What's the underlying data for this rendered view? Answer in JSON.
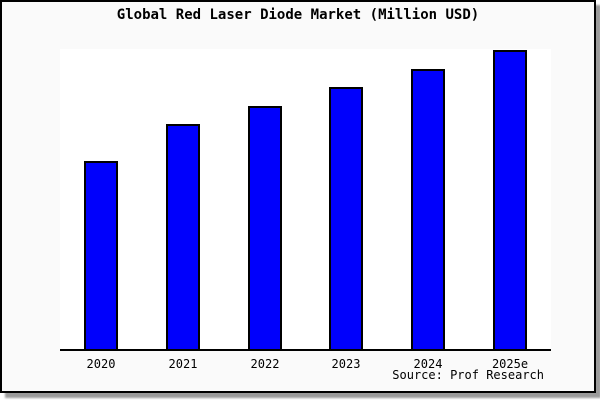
{
  "window": {
    "background": "#fafafa",
    "border_color": "#000000",
    "shadow_color": "#9a9a9a"
  },
  "chart_data": {
    "type": "bar",
    "title": "Global Red Laser Diode Market (Million USD)",
    "categories": [
      "2020",
      "2021",
      "2022",
      "2023",
      "2024",
      "2025e"
    ],
    "values": [
      189,
      226,
      245,
      264,
      282,
      301
    ],
    "ylim": [
      0,
      302
    ],
    "y_axis": {
      "visible": false,
      "ticks": []
    },
    "grid": false,
    "legend": false,
    "bar_color": "#0000fc",
    "bar_border_color": "#000000",
    "plot_background": "#ffffff",
    "source": "Source: Prof Research"
  }
}
